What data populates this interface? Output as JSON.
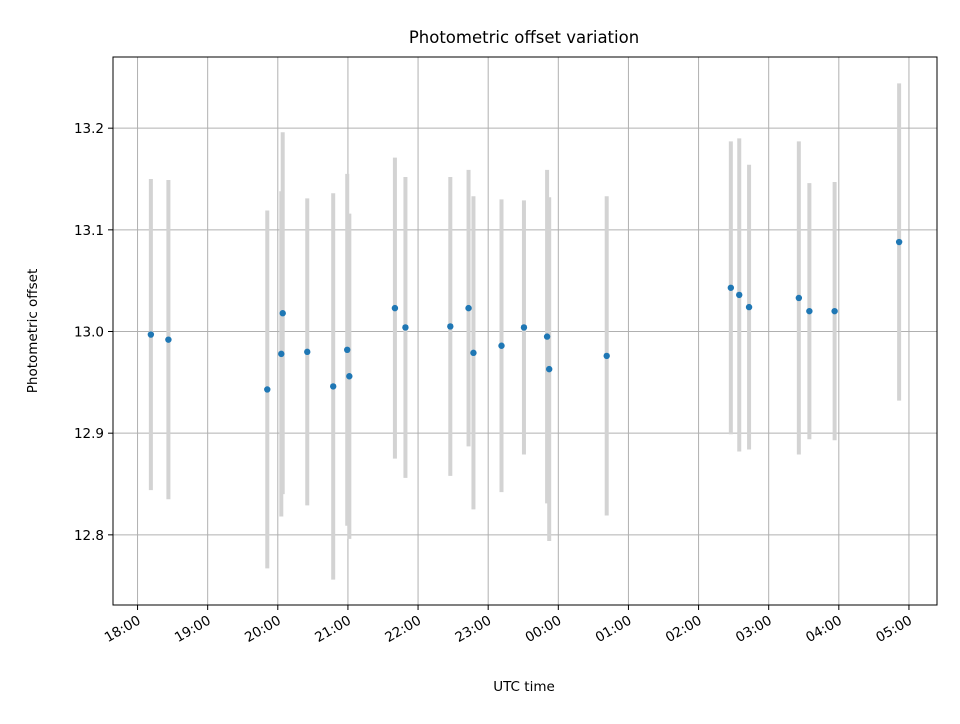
{
  "chart_data": {
    "type": "scatter",
    "title": "Photometric offset variation",
    "xlabel": "UTC time",
    "ylabel": "Photometric offset",
    "x_unit": "hours after 18:00 UTC",
    "xlim": [
      -0.35,
      11.4
    ],
    "ylim": [
      12.731,
      13.27
    ],
    "grid": true,
    "x_ticks": [
      {
        "value": 0,
        "label": "18:00"
      },
      {
        "value": 1,
        "label": "19:00"
      },
      {
        "value": 2,
        "label": "20:00"
      },
      {
        "value": 3,
        "label": "21:00"
      },
      {
        "value": 4,
        "label": "22:00"
      },
      {
        "value": 5,
        "label": "23:00"
      },
      {
        "value": 6,
        "label": "00:00"
      },
      {
        "value": 7,
        "label": "01:00"
      },
      {
        "value": 8,
        "label": "02:00"
      },
      {
        "value": 9,
        "label": "03:00"
      },
      {
        "value": 10,
        "label": "04:00"
      },
      {
        "value": 11,
        "label": "05:00"
      }
    ],
    "y_ticks": [
      {
        "value": 12.8,
        "label": "12.8"
      },
      {
        "value": 12.9,
        "label": "12.9"
      },
      {
        "value": 13.0,
        "label": "13.0"
      },
      {
        "value": 13.1,
        "label": "13.1"
      },
      {
        "value": 13.2,
        "label": "13.2"
      }
    ],
    "point_color": "#1f77b4",
    "errorbar_color": "#d3d3d3",
    "grid_color": "#b0b0b0",
    "points": [
      {
        "x": 0.19,
        "y": 12.997,
        "err": 0.153
      },
      {
        "x": 0.44,
        "y": 12.992,
        "err": 0.157
      },
      {
        "x": 1.85,
        "y": 12.943,
        "err": 0.176
      },
      {
        "x": 2.05,
        "y": 12.978,
        "err": 0.16
      },
      {
        "x": 2.07,
        "y": 13.018,
        "err": 0.178
      },
      {
        "x": 2.42,
        "y": 12.98,
        "err": 0.151
      },
      {
        "x": 2.79,
        "y": 12.946,
        "err": 0.19
      },
      {
        "x": 2.99,
        "y": 12.982,
        "err": 0.173
      },
      {
        "x": 3.02,
        "y": 12.956,
        "err": 0.16
      },
      {
        "x": 3.67,
        "y": 13.023,
        "err": 0.148
      },
      {
        "x": 3.82,
        "y": 13.004,
        "err": 0.148
      },
      {
        "x": 4.46,
        "y": 13.005,
        "err": 0.147
      },
      {
        "x": 4.72,
        "y": 13.023,
        "err": 0.136
      },
      {
        "x": 4.79,
        "y": 12.979,
        "err": 0.154
      },
      {
        "x": 5.19,
        "y": 12.986,
        "err": 0.144
      },
      {
        "x": 5.51,
        "y": 13.004,
        "err": 0.125
      },
      {
        "x": 5.84,
        "y": 12.995,
        "err": 0.164
      },
      {
        "x": 5.87,
        "y": 12.963,
        "err": 0.169
      },
      {
        "x": 6.69,
        "y": 12.976,
        "err": 0.157
      },
      {
        "x": 8.46,
        "y": 13.043,
        "err": 0.144
      },
      {
        "x": 8.58,
        "y": 13.036,
        "err": 0.154
      },
      {
        "x": 8.72,
        "y": 13.024,
        "err": 0.14
      },
      {
        "x": 9.43,
        "y": 13.033,
        "err": 0.154
      },
      {
        "x": 9.58,
        "y": 13.02,
        "err": 0.126
      },
      {
        "x": 9.94,
        "y": 13.02,
        "err": 0.127
      },
      {
        "x": 10.86,
        "y": 13.088,
        "err": 0.156
      }
    ]
  }
}
